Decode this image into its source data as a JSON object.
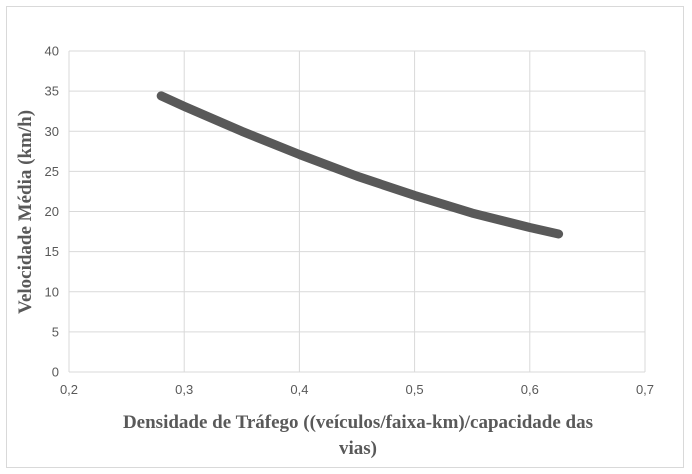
{
  "chart_data": {
    "type": "line",
    "xlabel_lines": [
      "Densidade de Tráfego ((veículos/faixa-km)/capacidade das",
      "vias)"
    ],
    "ylabel": "Velocidade Média (km/h)",
    "xlim": [
      0.2,
      0.7
    ],
    "ylim": [
      0,
      40
    ],
    "x_ticks": [
      "0,2",
      "0,3",
      "0,4",
      "0,5",
      "0,6",
      "0,7"
    ],
    "y_ticks": [
      "0",
      "5",
      "10",
      "15",
      "20",
      "25",
      "30",
      "35",
      "40"
    ],
    "grid": true,
    "legend": "none",
    "series": [
      {
        "color": "#595959",
        "x": [
          0.28,
          0.3,
          0.35,
          0.4,
          0.45,
          0.5,
          0.55,
          0.6,
          0.625
        ],
        "y": [
          34.4,
          33.1,
          30.0,
          27.1,
          24.4,
          22.0,
          19.8,
          18.0,
          17.2
        ]
      }
    ]
  }
}
